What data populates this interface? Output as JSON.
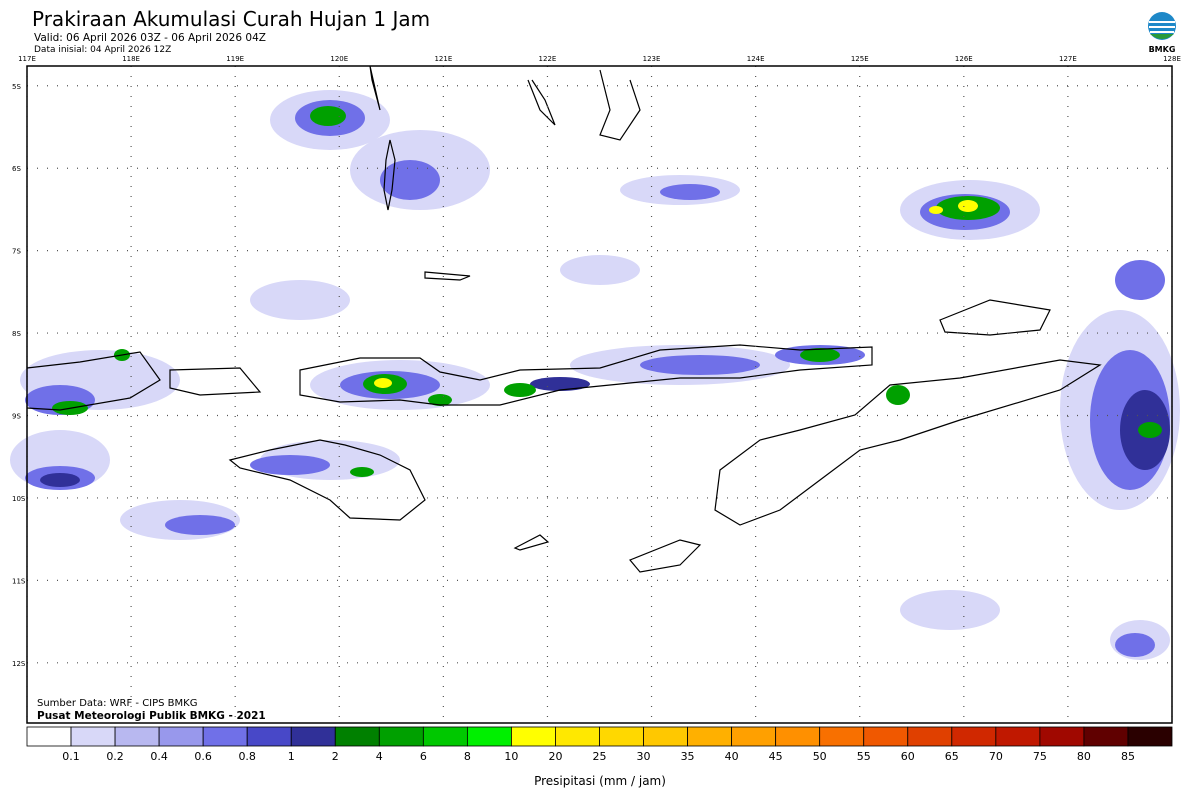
{
  "header": {
    "title": "Prakiraan Akumulasi Curah Hujan 1 Jam",
    "valid": "Valid: 06 April 2026 03Z - 06 April 2026 04Z",
    "initial": "Data inisial: 04 April 2026 12Z",
    "logo": "BMKG"
  },
  "chart_data": {
    "type": "map",
    "xlim": [
      117,
      128
    ],
    "ylim": [
      -12.73,
      -4.76
    ],
    "xticks": [
      {
        "value": 117,
        "label": "117E"
      },
      {
        "value": 118,
        "label": "118E"
      },
      {
        "value": 119,
        "label": "119E"
      },
      {
        "value": 120,
        "label": "120E"
      },
      {
        "value": 121,
        "label": "121E"
      },
      {
        "value": 122,
        "label": "122E"
      },
      {
        "value": 123,
        "label": "123E"
      },
      {
        "value": 124,
        "label": "124E"
      },
      {
        "value": 125,
        "label": "125E"
      },
      {
        "value": 126,
        "label": "126E"
      },
      {
        "value": 127,
        "label": "127E"
      },
      {
        "value": 128,
        "label": "128E"
      }
    ],
    "yticks": [
      {
        "value": -5,
        "label": "5S"
      },
      {
        "value": -6,
        "label": "6S"
      },
      {
        "value": -7,
        "label": "7S"
      },
      {
        "value": -8,
        "label": "8S"
      },
      {
        "value": -9,
        "label": "9S"
      },
      {
        "value": -10,
        "label": "10S"
      },
      {
        "value": -11,
        "label": "11S"
      },
      {
        "value": -12,
        "label": "12S"
      }
    ],
    "grid": true
  },
  "colorbar": {
    "levels": [
      0.1,
      0.2,
      0.4,
      0.6,
      0.8,
      1,
      2,
      4,
      6,
      8,
      10,
      20,
      25,
      30,
      35,
      40,
      45,
      50,
      55,
      60,
      65,
      70,
      75,
      80,
      85
    ],
    "colors": [
      "#ffffff",
      "#d8d8f8",
      "#b8b8f0",
      "#9898ec",
      "#7070e8",
      "#4848c8",
      "#303098",
      "#008000",
      "#00a000",
      "#00c800",
      "#00f000",
      "#ffff00",
      "#ffe800",
      "#ffd800",
      "#ffc800",
      "#ffb000",
      "#ffa000",
      "#ff9000",
      "#f87000",
      "#f05800",
      "#e04000",
      "#d02800",
      "#c01800",
      "#a00800",
      "#600000",
      "#2a0000"
    ],
    "label": "Presipitasi (mm / jam)"
  },
  "footer": {
    "source": "Sumber Data: WRF - CIPS BMKG",
    "credit": "Pusat Meteorologi Publik BMKG - 2021"
  }
}
